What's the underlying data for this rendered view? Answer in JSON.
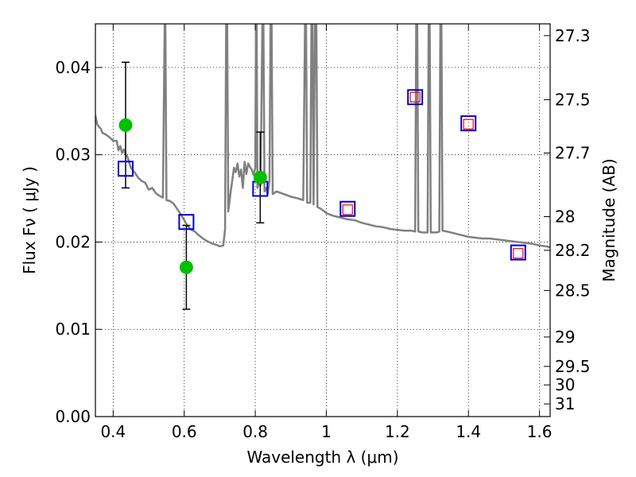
{
  "chart_data": {
    "type": "line",
    "xlabel": "Wavelength  λ (μm)",
    "ylabel": "Flux  Fν  ( μJy )",
    "ylabel_right": "Magnitude (AB)",
    "xlim": [
      0.35,
      1.63
    ],
    "ylim": [
      0.0,
      0.045
    ],
    "grid": true,
    "x_ticks": [
      {
        "value": 0.4,
        "label": "0.4"
      },
      {
        "value": 0.6,
        "label": "0.6"
      },
      {
        "value": 0.8,
        "label": "0.8"
      },
      {
        "value": 1.0,
        "label": "1"
      },
      {
        "value": 1.2,
        "label": "1.2"
      },
      {
        "value": 1.4,
        "label": "1.4"
      },
      {
        "value": 1.6,
        "label": "1.6"
      }
    ],
    "y_ticks": [
      {
        "value": 0.0,
        "label": "0.00"
      },
      {
        "value": 0.01,
        "label": "0.01"
      },
      {
        "value": 0.02,
        "label": "0.02"
      },
      {
        "value": 0.03,
        "label": "0.03"
      },
      {
        "value": 0.04,
        "label": "0.04"
      }
    ],
    "right_ticks": [
      {
        "label": "27.3",
        "flux": 0.04365
      },
      {
        "label": "27.5",
        "flux": 0.03631
      },
      {
        "label": "27.7",
        "flux": 0.0302
      },
      {
        "label": "28",
        "flux": 0.02291
      },
      {
        "label": "28.2",
        "flux": 0.01905
      },
      {
        "label": "28.5",
        "flux": 0.01445
      },
      {
        "label": "29",
        "flux": 0.00912
      },
      {
        "label": "29.5",
        "flux": 0.00575
      },
      {
        "label": "30",
        "flux": 0.00363
      },
      {
        "label": "31",
        "flux": 0.00145
      }
    ],
    "series": [
      {
        "kind": "model-spectrum",
        "color": "#808080",
        "points": [
          [
            0.35,
            0.0345
          ],
          [
            0.355,
            0.0335
          ],
          [
            0.36,
            0.0332
          ],
          [
            0.365,
            0.033
          ],
          [
            0.37,
            0.0325
          ],
          [
            0.38,
            0.0323
          ],
          [
            0.39,
            0.032
          ],
          [
            0.4,
            0.0316
          ],
          [
            0.41,
            0.0316
          ],
          [
            0.415,
            0.0305
          ],
          [
            0.42,
            0.031
          ],
          [
            0.425,
            0.0302
          ],
          [
            0.43,
            0.0306
          ],
          [
            0.435,
            0.03
          ],
          [
            0.44,
            0.0298
          ],
          [
            0.45,
            0.0285
          ],
          [
            0.46,
            0.028
          ],
          [
            0.47,
            0.0274
          ],
          [
            0.48,
            0.027
          ],
          [
            0.49,
            0.0268
          ],
          [
            0.5,
            0.026
          ],
          [
            0.51,
            0.0262
          ],
          [
            0.52,
            0.0256
          ],
          [
            0.53,
            0.0253
          ],
          [
            0.54,
            0.0251
          ],
          [
            0.545,
            0.045
          ],
          [
            0.547,
            0.045
          ],
          [
            0.55,
            0.0248
          ],
          [
            0.56,
            0.0247
          ],
          [
            0.57,
            0.0244
          ],
          [
            0.58,
            0.0238
          ],
          [
            0.59,
            0.0232
          ],
          [
            0.6,
            0.0225
          ],
          [
            0.61,
            0.0218
          ],
          [
            0.62,
            0.0214
          ],
          [
            0.63,
            0.0212
          ],
          [
            0.64,
            0.0208
          ],
          [
            0.65,
            0.0205
          ],
          [
            0.66,
            0.0202
          ],
          [
            0.67,
            0.02
          ],
          [
            0.68,
            0.0198
          ],
          [
            0.69,
            0.0197
          ],
          [
            0.7,
            0.0195
          ],
          [
            0.71,
            0.0196
          ],
          [
            0.715,
            0.0215
          ],
          [
            0.718,
            0.045
          ],
          [
            0.721,
            0.045
          ],
          [
            0.724,
            0.0235
          ],
          [
            0.73,
            0.0255
          ],
          [
            0.735,
            0.027
          ],
          [
            0.74,
            0.0285
          ],
          [
            0.745,
            0.028
          ],
          [
            0.75,
            0.029
          ],
          [
            0.755,
            0.0275
          ],
          [
            0.76,
            0.0283
          ],
          [
            0.765,
            0.0262
          ],
          [
            0.77,
            0.0292
          ],
          [
            0.775,
            0.0278
          ],
          [
            0.78,
            0.029
          ],
          [
            0.785,
            0.0286
          ],
          [
            0.79,
            0.0283
          ],
          [
            0.795,
            0.0277
          ],
          [
            0.8,
            0.0285
          ],
          [
            0.802,
            0.045
          ],
          [
            0.804,
            0.045
          ],
          [
            0.806,
            0.0262
          ],
          [
            0.81,
            0.0268
          ],
          [
            0.815,
            0.0265
          ],
          [
            0.82,
            0.045
          ],
          [
            0.823,
            0.045
          ],
          [
            0.826,
            0.0258
          ],
          [
            0.83,
            0.0262
          ],
          [
            0.835,
            0.0255
          ],
          [
            0.84,
            0.027
          ],
          [
            0.843,
            0.045
          ],
          [
            0.846,
            0.045
          ],
          [
            0.849,
            0.0255
          ],
          [
            0.86,
            0.0258
          ],
          [
            0.88,
            0.0255
          ],
          [
            0.9,
            0.0252
          ],
          [
            0.92,
            0.025
          ],
          [
            0.935,
            0.0248
          ],
          [
            0.94,
            0.045
          ],
          [
            0.943,
            0.045
          ],
          [
            0.946,
            0.0245
          ],
          [
            0.955,
            0.0245
          ],
          [
            0.958,
            0.045
          ],
          [
            0.961,
            0.045
          ],
          [
            0.964,
            0.0243
          ],
          [
            0.968,
            0.045
          ],
          [
            0.972,
            0.045
          ],
          [
            0.975,
            0.024
          ],
          [
            0.985,
            0.0238
          ],
          [
            0.995,
            0.0235
          ],
          [
            1.0,
            0.0233
          ],
          [
            1.02,
            0.023
          ],
          [
            1.04,
            0.0228
          ],
          [
            1.06,
            0.0226
          ],
          [
            1.08,
            0.0225
          ],
          [
            1.1,
            0.0222
          ],
          [
            1.12,
            0.022
          ],
          [
            1.14,
            0.0218
          ],
          [
            1.16,
            0.0217
          ],
          [
            1.18,
            0.0215
          ],
          [
            1.2,
            0.0214
          ],
          [
            1.22,
            0.0213
          ],
          [
            1.24,
            0.0213
          ],
          [
            1.25,
            0.0212
          ],
          [
            1.253,
            0.045
          ],
          [
            1.256,
            0.045
          ],
          [
            1.259,
            0.0212
          ],
          [
            1.27,
            0.0211
          ],
          [
            1.285,
            0.0211
          ],
          [
            1.288,
            0.045
          ],
          [
            1.291,
            0.045
          ],
          [
            1.294,
            0.0211
          ],
          [
            1.31,
            0.0211
          ],
          [
            1.318,
            0.0212
          ],
          [
            1.321,
            0.045
          ],
          [
            1.324,
            0.045
          ],
          [
            1.327,
            0.0213
          ],
          [
            1.34,
            0.0212
          ],
          [
            1.36,
            0.021
          ],
          [
            1.38,
            0.0208
          ],
          [
            1.4,
            0.0206
          ],
          [
            1.42,
            0.0205
          ],
          [
            1.44,
            0.0204
          ],
          [
            1.46,
            0.0204
          ],
          [
            1.48,
            0.0203
          ],
          [
            1.5,
            0.0202
          ],
          [
            1.52,
            0.0201
          ],
          [
            1.54,
            0.02
          ],
          [
            1.56,
            0.0199
          ],
          [
            1.58,
            0.0198
          ],
          [
            1.6,
            0.0196
          ],
          [
            1.62,
            0.0195
          ],
          [
            1.63,
            0.0194
          ]
        ]
      },
      {
        "kind": "observed",
        "color": "#00c000",
        "points": [
          {
            "x": 0.435,
            "y": 0.0334,
            "yerr_low": 0.0262,
            "yerr_high": 0.0406
          },
          {
            "x": 0.606,
            "y": 0.0171,
            "yerr_low": 0.0123,
            "yerr_high": 0.0219
          },
          {
            "x": 0.814,
            "y": 0.0274,
            "yerr_low": 0.0222,
            "yerr_high": 0.0326
          }
        ]
      },
      {
        "kind": "model-photometry",
        "color": "#0000cc",
        "points": [
          {
            "x": 0.435,
            "y": 0.0284
          },
          {
            "x": 0.606,
            "y": 0.0223
          },
          {
            "x": 0.814,
            "y": 0.0261
          },
          {
            "x": 1.06,
            "y": 0.0238
          },
          {
            "x": 1.25,
            "y": 0.0366
          },
          {
            "x": 1.4,
            "y": 0.0336
          },
          {
            "x": 1.54,
            "y": 0.0188
          }
        ]
      },
      {
        "kind": "upper-limit",
        "color": "#ff0000",
        "points": [
          {
            "x": 1.06,
            "y": 0.0237
          },
          {
            "x": 1.25,
            "y": 0.0366
          },
          {
            "x": 1.4,
            "y": 0.0335
          },
          {
            "x": 1.54,
            "y": 0.0187
          }
        ]
      }
    ]
  }
}
